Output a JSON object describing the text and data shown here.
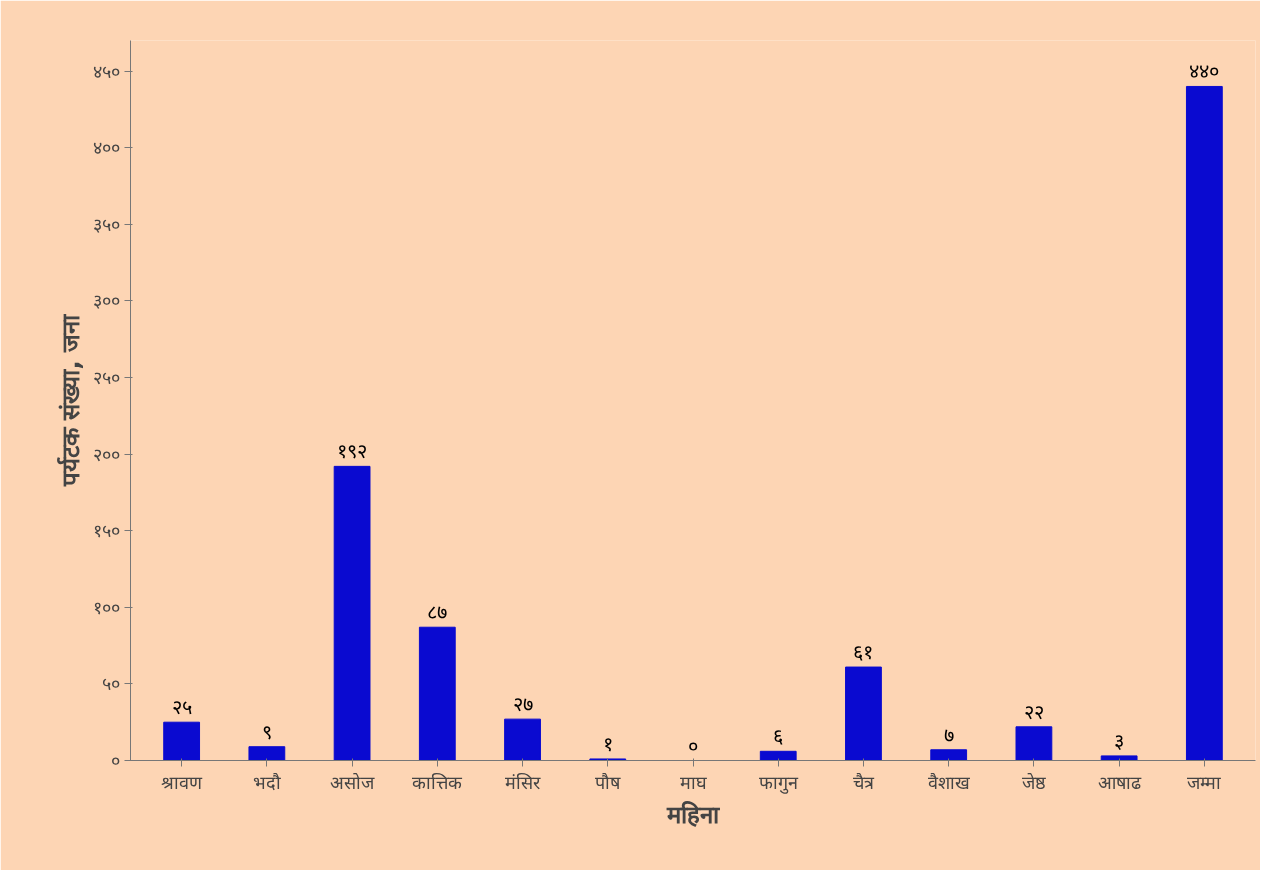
{
  "chart_data": {
    "type": "bar",
    "xlabel": "महिना",
    "ylabel": "पर्यटक संख्या, जना",
    "categories": [
      "श्रावण",
      "भदौ",
      "असोज",
      "कात्तिक",
      "मंसिर",
      "पौष",
      "माघ",
      "फागुन",
      "चैत्र",
      "वैशाख",
      "जेष्ठ",
      "आषाढ",
      "जम्मा"
    ],
    "values": [
      25,
      9,
      192,
      87,
      27,
      1,
      0,
      6,
      61,
      7,
      22,
      3,
      440
    ],
    "value_labels": [
      "२५",
      "९",
      "१९२",
      "८७",
      "२७",
      "१",
      "०",
      "६",
      "६१",
      "७",
      "२२",
      "३",
      "४४०"
    ],
    "color": "#0a0ad0",
    "ylim": [
      0,
      470
    ],
    "yticks": [
      {
        "value": 0,
        "label": "०"
      },
      {
        "value": 50,
        "label": "५०"
      },
      {
        "value": 100,
        "label": "१००"
      },
      {
        "value": 150,
        "label": "१५०"
      },
      {
        "value": 200,
        "label": "२००"
      },
      {
        "value": 250,
        "label": "२५०"
      },
      {
        "value": 300,
        "label": "३००"
      },
      {
        "value": 350,
        "label": "३५०"
      },
      {
        "value": 400,
        "label": "४००"
      },
      {
        "value": 450,
        "label": "४५०"
      }
    ],
    "grid": false
  }
}
